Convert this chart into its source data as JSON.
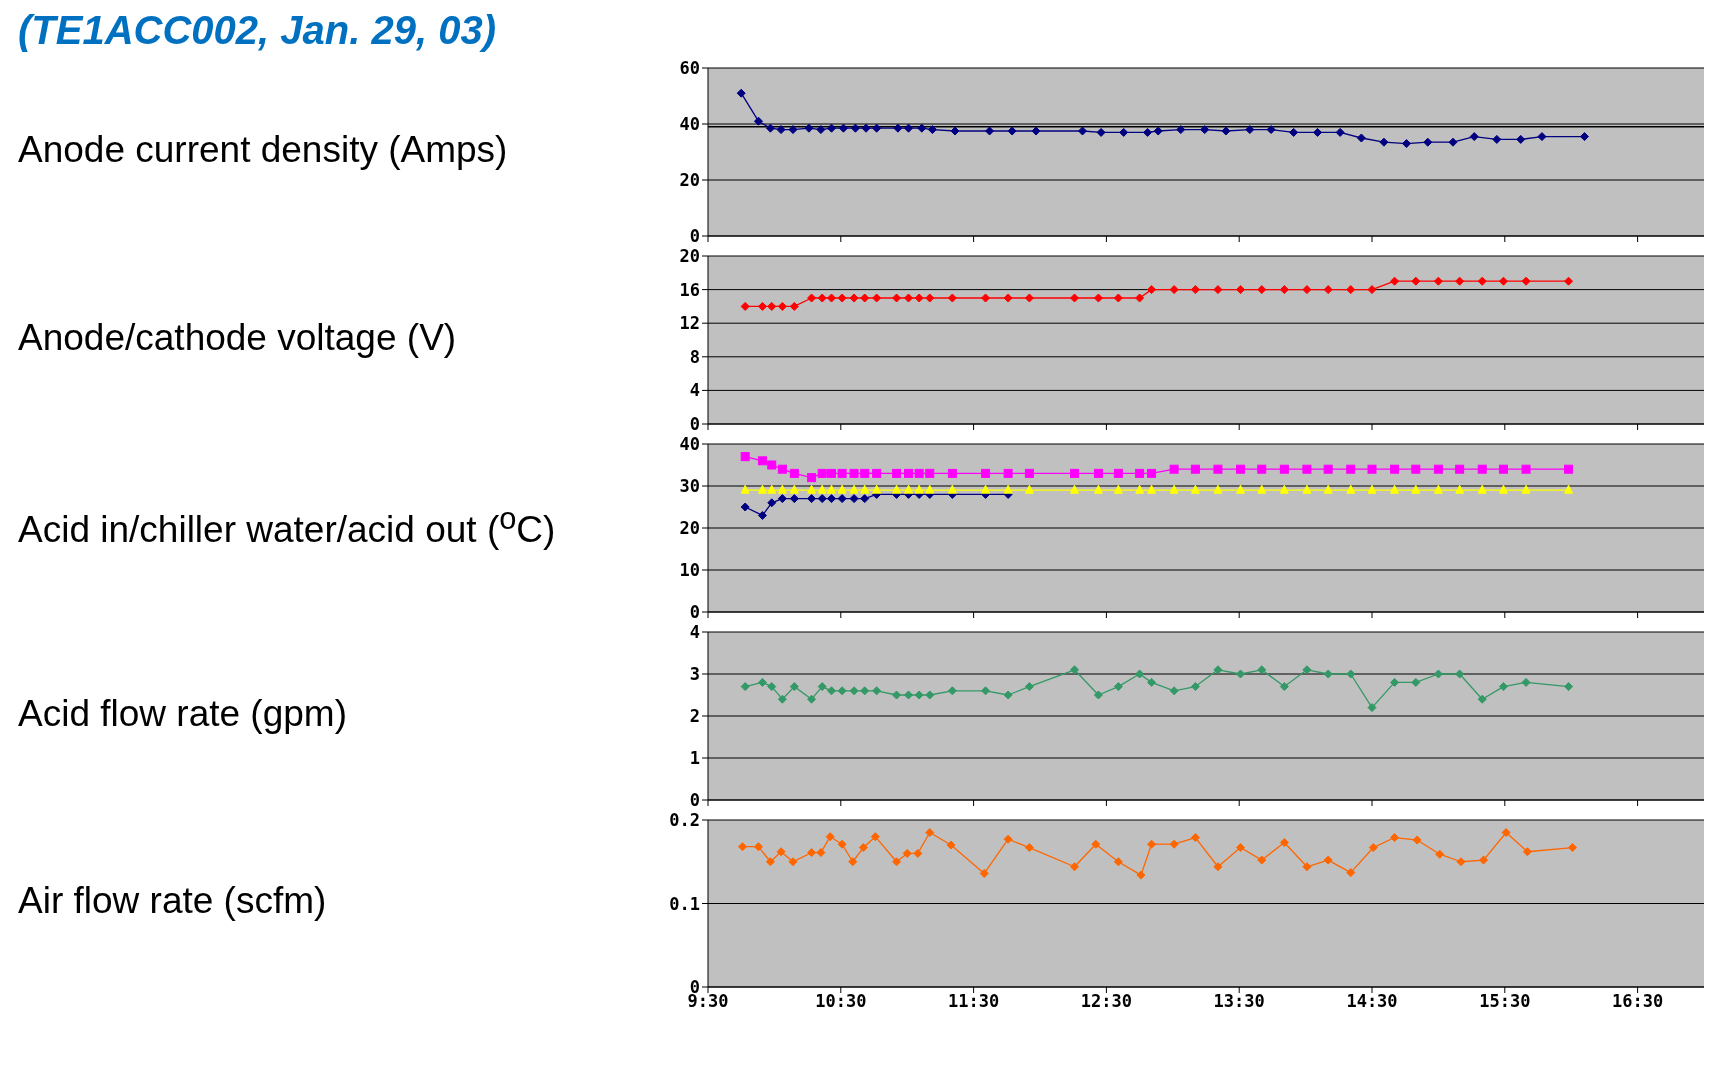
{
  "chart_data": [
    {
      "type": "line",
      "title": "(TE1ACC002, Jan. 29, 03)",
      "ylabel": "Anode current density (Amps)",
      "xlim": [
        9.5,
        17
      ],
      "xticks": [
        {
          "value": 9.5,
          "label": null
        },
        {
          "value": 10.5,
          "label": null
        },
        {
          "value": 11.5,
          "label": null
        },
        {
          "value": 12.5,
          "label": null
        },
        {
          "value": 13.5,
          "label": null
        },
        {
          "value": 14.5,
          "label": null
        },
        {
          "value": 15.5,
          "label": null
        },
        {
          "value": 16.5,
          "label": null
        }
      ],
      "ylim": [
        0,
        60
      ],
      "yticks": [
        0,
        20,
        40,
        60
      ],
      "grid": "y",
      "marker": "diamond",
      "tick_labels": "y",
      "legend": false,
      "ref_lines": [
        {
          "axis": "y",
          "value": 39,
          "color": "#000000"
        }
      ],
      "series": [
        {
          "color": "#000080",
          "x": [
            9.75,
            9.88,
            9.97,
            10.05,
            10.14,
            10.26,
            10.35,
            10.43,
            10.52,
            10.61,
            10.69,
            10.77,
            10.93,
            11.01,
            11.11,
            11.19,
            11.36,
            11.62,
            11.79,
            11.97,
            12.32,
            12.46,
            12.63,
            12.81,
            12.89,
            13.06,
            13.24,
            13.4,
            13.58,
            13.74,
            13.91,
            14.09,
            14.26,
            14.42,
            14.59,
            14.76,
            14.92,
            15.11,
            15.27,
            15.44,
            15.62,
            15.78,
            16.1
          ],
          "values": [
            51,
            41,
            38.5,
            38,
            38,
            38.5,
            38,
            38.5,
            38.5,
            38.5,
            38.5,
            38.5,
            38.5,
            38.5,
            38.5,
            38,
            37.5,
            37.5,
            37.5,
            37.5,
            37.5,
            37,
            37,
            37,
            37.5,
            38,
            38,
            37.5,
            38,
            38,
            37,
            37,
            37,
            35,
            33.5,
            33,
            33.5,
            33.5,
            35.5,
            34.5,
            34.5,
            35.5,
            35.5
          ]
        }
      ]
    },
    {
      "type": "line",
      "ylabel": "Anode/cathode voltage (V)",
      "xlim": [
        9.5,
        17
      ],
      "xticks": [
        {
          "value": 9.5,
          "label": null
        },
        {
          "value": 10.5,
          "label": null
        },
        {
          "value": 11.5,
          "label": null
        },
        {
          "value": 12.5,
          "label": null
        },
        {
          "value": 13.5,
          "label": null
        },
        {
          "value": 14.5,
          "label": null
        },
        {
          "value": 15.5,
          "label": null
        },
        {
          "value": 16.5,
          "label": null
        }
      ],
      "ylim": [
        0,
        20
      ],
      "yticks": [
        0,
        4,
        8,
        12,
        16,
        20
      ],
      "grid": "y",
      "marker": "diamond",
      "tick_labels": "y",
      "legend": false,
      "series": [
        {
          "color": "#ff0000",
          "x": [
            9.78,
            9.91,
            9.98,
            10.06,
            10.15,
            10.28,
            10.36,
            10.43,
            10.51,
            10.6,
            10.68,
            10.77,
            10.92,
            11.01,
            11.09,
            11.17,
            11.34,
            11.59,
            11.76,
            11.92,
            12.26,
            12.44,
            12.59,
            12.75,
            12.84,
            13.01,
            13.17,
            13.34,
            13.51,
            13.67,
            13.84,
            14.01,
            14.17,
            14.34,
            14.5,
            14.67,
            14.83,
            15,
            15.16,
            15.33,
            15.49,
            15.66,
            15.98
          ],
          "values": [
            14,
            14,
            14,
            14,
            14,
            15,
            15,
            15,
            15,
            15,
            15,
            15,
            15,
            15,
            15,
            15,
            15,
            15,
            15,
            15,
            15,
            15,
            15,
            15,
            16,
            16,
            16,
            16,
            16,
            16,
            16,
            16,
            16,
            16,
            16,
            17,
            17,
            17,
            17,
            17,
            17,
            17,
            17
          ]
        }
      ]
    },
    {
      "type": "line",
      "ylabel": "Acid in/chiller water/acid out ($^{o}$C)",
      "xlim": [
        9.5,
        17
      ],
      "xticks": [
        {
          "value": 9.5,
          "label": null
        },
        {
          "value": 10.5,
          "label": null
        },
        {
          "value": 11.5,
          "label": null
        },
        {
          "value": 12.5,
          "label": null
        },
        {
          "value": 13.5,
          "label": null
        },
        {
          "value": 14.5,
          "label": null
        },
        {
          "value": 15.5,
          "label": null
        },
        {
          "value": 16.5,
          "label": null
        }
      ],
      "ylim": [
        0,
        40
      ],
      "yticks": [
        0,
        10,
        20,
        30,
        40
      ],
      "grid": "y",
      "tick_labels": "y",
      "legend": false,
      "series": [
        {
          "color": "#000080",
          "marker": "diamond",
          "x": [
            9.78,
            9.91,
            9.98,
            10.06,
            10.15,
            10.28,
            10.36,
            10.43,
            10.51,
            10.6,
            10.68,
            10.77,
            10.92,
            11.01,
            11.09,
            11.17,
            11.34,
            11.59,
            11.76
          ],
          "values": [
            25,
            23,
            26,
            27,
            27,
            27,
            27,
            27,
            27,
            27,
            27,
            28,
            28,
            28,
            28,
            28,
            28,
            28,
            28
          ]
        },
        {
          "color": "#ff00ff",
          "marker": "square",
          "x": [
            9.78,
            9.91,
            9.98,
            10.06,
            10.15,
            10.28,
            10.36,
            10.43,
            10.51,
            10.6,
            10.68,
            10.77,
            10.92,
            11.01,
            11.09,
            11.17,
            11.34,
            11.59,
            11.76,
            11.92,
            12.26,
            12.44,
            12.59,
            12.75,
            12.84,
            13.01,
            13.17,
            13.34,
            13.51,
            13.67,
            13.84,
            14.01,
            14.17,
            14.34,
            14.5,
            14.67,
            14.83,
            15,
            15.16,
            15.33,
            15.49,
            15.66,
            15.98
          ],
          "values": [
            37,
            36,
            35,
            34,
            33,
            32,
            33,
            33,
            33,
            33,
            33,
            33,
            33,
            33,
            33,
            33,
            33,
            33,
            33,
            33,
            33,
            33,
            33,
            33,
            33,
            34,
            34,
            34,
            34,
            34,
            34,
            34,
            34,
            34,
            34,
            34,
            34,
            34,
            34,
            34,
            34,
            34,
            34
          ]
        },
        {
          "color": "#ffff00",
          "marker": "triangle",
          "x": [
            9.78,
            9.91,
            9.98,
            10.06,
            10.15,
            10.28,
            10.36,
            10.43,
            10.51,
            10.6,
            10.68,
            10.77,
            10.92,
            11.01,
            11.09,
            11.17,
            11.34,
            11.59,
            11.76,
            11.92,
            12.26,
            12.44,
            12.59,
            12.75,
            12.84,
            13.01,
            13.17,
            13.34,
            13.51,
            13.67,
            13.84,
            14.01,
            14.17,
            14.34,
            14.5,
            14.67,
            14.83,
            15,
            15.16,
            15.33,
            15.49,
            15.66,
            15.98
          ],
          "values": [
            29,
            29,
            29,
            29,
            29,
            29,
            29,
            29,
            29,
            29,
            29,
            29,
            29,
            29,
            29,
            29,
            29,
            29,
            29,
            29,
            29,
            29,
            29,
            29,
            29,
            29,
            29,
            29,
            29,
            29,
            29,
            29,
            29,
            29,
            29,
            29,
            29,
            29,
            29,
            29,
            29,
            29,
            29
          ]
        }
      ]
    },
    {
      "type": "line",
      "ylabel": "Acid flow rate (gpm)",
      "xlim": [
        9.5,
        17
      ],
      "xticks": [
        {
          "value": 9.5,
          "label": null
        },
        {
          "value": 10.5,
          "label": null
        },
        {
          "value": 11.5,
          "label": null
        },
        {
          "value": 12.5,
          "label": null
        },
        {
          "value": 13.5,
          "label": null
        },
        {
          "value": 14.5,
          "label": null
        },
        {
          "value": 15.5,
          "label": null
        },
        {
          "value": 16.5,
          "label": null
        }
      ],
      "ylim": [
        0,
        4
      ],
      "yticks": [
        0,
        1,
        2,
        3,
        4
      ],
      "grid": "y",
      "marker": "diamond",
      "tick_labels": "y",
      "legend": false,
      "series": [
        {
          "color": "#339966",
          "x": [
            9.78,
            9.91,
            9.98,
            10.06,
            10.15,
            10.28,
            10.36,
            10.43,
            10.51,
            10.6,
            10.68,
            10.77,
            10.92,
            11.01,
            11.09,
            11.17,
            11.34,
            11.59,
            11.76,
            11.92,
            12.26,
            12.44,
            12.59,
            12.75,
            12.84,
            13.01,
            13.17,
            13.34,
            13.51,
            13.67,
            13.84,
            14.01,
            14.17,
            14.34,
            14.5,
            14.67,
            14.83,
            15,
            15.16,
            15.33,
            15.49,
            15.66,
            15.98
          ],
          "values": [
            2.7,
            2.8,
            2.7,
            2.4,
            2.7,
            2.4,
            2.7,
            2.6,
            2.6,
            2.6,
            2.6,
            2.6,
            2.5,
            2.5,
            2.5,
            2.5,
            2.6,
            2.6,
            2.5,
            2.7,
            3.1,
            2.5,
            2.7,
            3.0,
            2.8,
            2.6,
            2.7,
            3.1,
            3.0,
            3.1,
            2.7,
            3.1,
            3.0,
            3.0,
            2.2,
            2.8,
            2.8,
            3.0,
            3.0,
            2.4,
            2.7,
            2.8,
            2.7
          ]
        }
      ]
    },
    {
      "type": "line",
      "ylabel": "Air flow rate (scfm)",
      "xlim": [
        9.5,
        17
      ],
      "xticks": [
        {
          "value": 9.5,
          "label": "9:30"
        },
        {
          "value": 10.5,
          "label": "10:30"
        },
        {
          "value": 11.5,
          "label": "11:30"
        },
        {
          "value": 12.5,
          "label": "12:30"
        },
        {
          "value": 13.5,
          "label": "13:30"
        },
        {
          "value": 14.5,
          "label": "14:30"
        },
        {
          "value": 15.5,
          "label": "15:30"
        },
        {
          "value": 16.5,
          "label": "16:30"
        }
      ],
      "ylim": [
        0,
        0.2
      ],
      "yticks": [
        0,
        0.1,
        0.2
      ],
      "grid": "y",
      "marker": "diamond",
      "legend": false,
      "series": [
        {
          "color": "#ff6600",
          "x": [
            9.76,
            9.88,
            9.97,
            10.05,
            10.14,
            10.28,
            10.35,
            10.42,
            10.51,
            10.59,
            10.67,
            10.76,
            10.92,
            11.0,
            11.08,
            11.17,
            11.33,
            11.58,
            11.76,
            11.92,
            12.26,
            12.42,
            12.59,
            12.76,
            12.84,
            13.01,
            13.17,
            13.34,
            13.51,
            13.67,
            13.84,
            14.01,
            14.17,
            14.34,
            14.51,
            14.67,
            14.84,
            15.01,
            15.17,
            15.34,
            15.51,
            15.67,
            16.01
          ],
          "values": [
            0.168,
            0.168,
            0.15,
            0.162,
            0.15,
            0.161,
            0.161,
            0.18,
            0.171,
            0.15,
            0.167,
            0.18,
            0.15,
            0.16,
            0.16,
            0.185,
            0.17,
            0.136,
            0.177,
            0.167,
            0.144,
            0.171,
            0.15,
            0.134,
            0.171,
            0.171,
            0.179,
            0.144,
            0.167,
            0.152,
            0.173,
            0.144,
            0.152,
            0.137,
            0.167,
            0.179,
            0.176,
            0.159,
            0.15,
            0.152,
            0.185,
            0.162,
            0.167
          ]
        }
      ]
    }
  ]
}
